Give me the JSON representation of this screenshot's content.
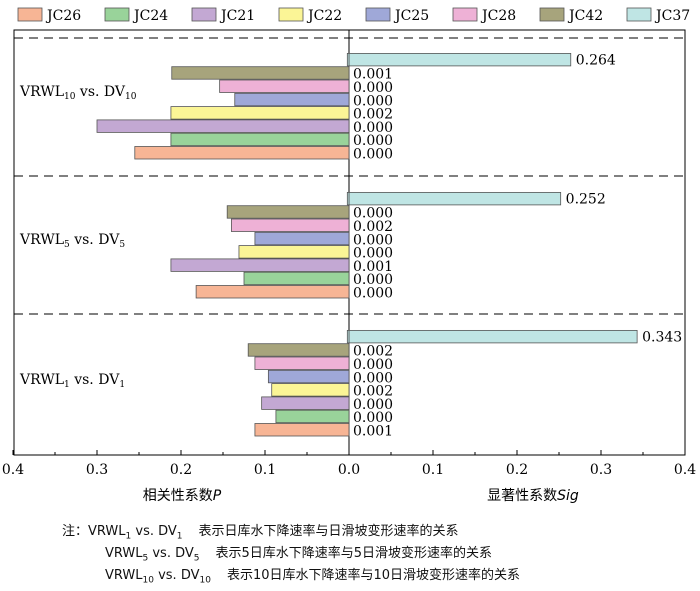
{
  "chart_data": {
    "type": "bar",
    "orientation": "horizontal",
    "legend": {
      "placement": "top",
      "entries": [
        {
          "name": "JC26",
          "color": "#f7b595"
        },
        {
          "name": "JC24",
          "color": "#99d39a"
        },
        {
          "name": "JC21",
          "color": "#c3a8d3"
        },
        {
          "name": "JC22",
          "color": "#fbf596"
        },
        {
          "name": "JC25",
          "color": "#9fa8d8"
        },
        {
          "name": "JC28",
          "color": "#eeb1d6"
        },
        {
          "name": "JC42",
          "color": "#a7a47c"
        },
        {
          "name": "JC37",
          "color": "#bfe5e4"
        }
      ]
    },
    "groups": [
      {
        "label_main": "VRWL",
        "label_sub": "10",
        "label_vs": " vs. DV",
        "label_sub2": "10",
        "P": {
          "JC26": 0.255,
          "JC24": 0.212,
          "JC21": 0.3,
          "JC22": 0.212,
          "JC25": 0.136,
          "JC28": 0.154,
          "JC42": 0.211,
          "JC37": 0.002
        },
        "Sig": {
          "JC26": "0.000",
          "JC24": "0.000",
          "JC21": "0.000",
          "JC22": "0.002",
          "JC25": "0.000",
          "JC28": "0.000",
          "JC42": "0.001",
          "JC37": "0.264"
        }
      },
      {
        "label_main": "VRWL",
        "label_sub": "5",
        "label_vs": " vs. DV",
        "label_sub2": "5",
        "P": {
          "JC26": 0.182,
          "JC24": 0.125,
          "JC21": 0.212,
          "JC22": 0.131,
          "JC25": 0.112,
          "JC28": 0.14,
          "JC42": 0.145,
          "JC37": 0.002
        },
        "Sig": {
          "JC26": "0.000",
          "JC24": "0.000",
          "JC21": "0.001",
          "JC22": "0.000",
          "JC25": "0.000",
          "JC28": "0.002",
          "JC42": "0.000",
          "JC37": "0.252"
        }
      },
      {
        "label_main": "VRWL",
        "label_sub": "1",
        "label_vs": " vs. DV",
        "label_sub2": "1",
        "P": {
          "JC26": 0.112,
          "JC24": 0.087,
          "JC21": 0.104,
          "JC22": 0.092,
          "JC25": 0.096,
          "JC28": 0.112,
          "JC42": 0.12,
          "JC37": 0.002
        },
        "Sig": {
          "JC26": "0.001",
          "JC24": "0.000",
          "JC21": "0.000",
          "JC22": "0.002",
          "JC25": "0.000",
          "JC28": "0.000",
          "JC42": "0.002",
          "JC37": "0.343"
        }
      }
    ],
    "xlim": [
      -0.4,
      0.4
    ],
    "ticks": [
      "0.4",
      "0.3",
      "0.2",
      "0.1",
      "0.0",
      "0.1",
      "0.2",
      "0.3",
      "0.4"
    ],
    "xlabel_left": "相关性系数",
    "xlabel_left_var": "P",
    "xlabel_right": "显著性系数",
    "xlabel_right_var": "Sig",
    "grid": false
  },
  "notes": {
    "prefix": "注：",
    "lines": [
      {
        "main": "VRWL",
        "sub": "1",
        "vs": " vs. DV",
        "sub2": "1",
        "text": "表示日库水下降速率与日滑坡变形速率的关系"
      },
      {
        "main": "VRWL",
        "sub": "5",
        "vs": " vs. DV",
        "sub2": "5",
        "text": "表示5日库水下降速率与5日滑坡变形速率的关系"
      },
      {
        "main": "VRWL",
        "sub": "10",
        "vs": " vs. DV",
        "sub2": "10",
        "text": "表示10日库水下降速率与10日滑坡变形速率的关系"
      }
    ]
  }
}
